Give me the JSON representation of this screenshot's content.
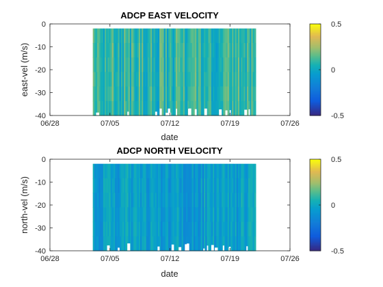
{
  "chart_data": [
    {
      "type": "heatmap",
      "title": "ADCP EAST VELOCITY",
      "xlabel": "date",
      "ylabel": "east-vel (m/s)",
      "x_ticks": [
        "06/28",
        "07/05",
        "07/12",
        "07/19",
        "07/26"
      ],
      "y_ticks": [
        "0",
        "-10",
        "-20",
        "-30",
        "-40"
      ],
      "ylim": [
        -40,
        0
      ],
      "xlim": [
        "06/28",
        "07/26"
      ],
      "data_x_range": [
        "07/03",
        "07/22"
      ],
      "data_depth_range": [
        -40,
        -2
      ],
      "colorbar": {
        "min": -0.5,
        "max": 0.5,
        "ticks": [
          "0.5",
          "0",
          "-0.5"
        ],
        "colormap": "parula"
      },
      "mean_value": 0.08,
      "variation": 0.12
    },
    {
      "type": "heatmap",
      "title": "ADCP NORTH VELOCITY",
      "xlabel": "date",
      "ylabel": "north-vel (m/s)",
      "x_ticks": [
        "06/28",
        "07/05",
        "07/12",
        "07/19",
        "07/26"
      ],
      "y_ticks": [
        "0",
        "-10",
        "-20",
        "-30",
        "-40"
      ],
      "ylim": [
        -40,
        0
      ],
      "xlim": [
        "06/28",
        "07/26"
      ],
      "data_x_range": [
        "07/03",
        "07/22"
      ],
      "data_depth_range": [
        -40,
        -2
      ],
      "colorbar": {
        "min": -0.5,
        "max": 0.5,
        "ticks": [
          "0.5",
          "0",
          "-0.5"
        ],
        "colormap": "parula"
      },
      "mean_value": -0.05,
      "variation": 0.1
    }
  ]
}
